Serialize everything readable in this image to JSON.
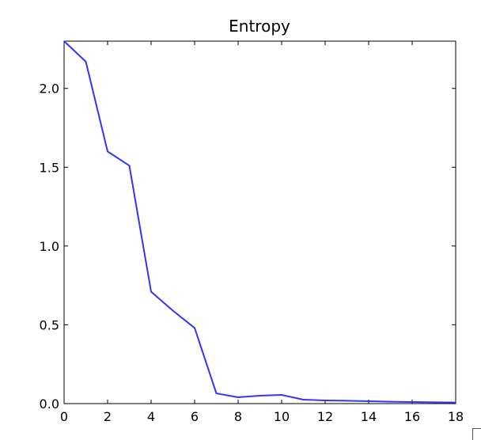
{
  "chart_data": {
    "type": "line",
    "title": "Entropy",
    "xlabel": "",
    "ylabel": "",
    "xlim": [
      0,
      18
    ],
    "ylim": [
      0,
      2.3
    ],
    "xticks": [
      0,
      2,
      4,
      6,
      8,
      10,
      12,
      14,
      16,
      18
    ],
    "yticks": [
      0.0,
      0.5,
      1.0,
      1.5,
      2.0
    ],
    "xtick_labels": [
      "0",
      "2",
      "4",
      "6",
      "8",
      "10",
      "12",
      "14",
      "16",
      "18"
    ],
    "ytick_labels": [
      "0.0",
      "0.5",
      "1.0",
      "1.5",
      "2.0"
    ],
    "grid": false,
    "series": [
      {
        "color": "#3333ff",
        "x": [
          0,
          1,
          2,
          3,
          4,
          5,
          6,
          7,
          8,
          9,
          10,
          11,
          12,
          13,
          14,
          15,
          16,
          17,
          18
        ],
        "values": [
          2.3,
          2.17,
          1.6,
          1.51,
          0.71,
          0.59,
          0.48,
          0.065,
          0.04,
          0.05,
          0.055,
          0.025,
          0.02,
          0.018,
          0.015,
          0.012,
          0.01,
          0.008,
          0.007
        ]
      }
    ]
  }
}
